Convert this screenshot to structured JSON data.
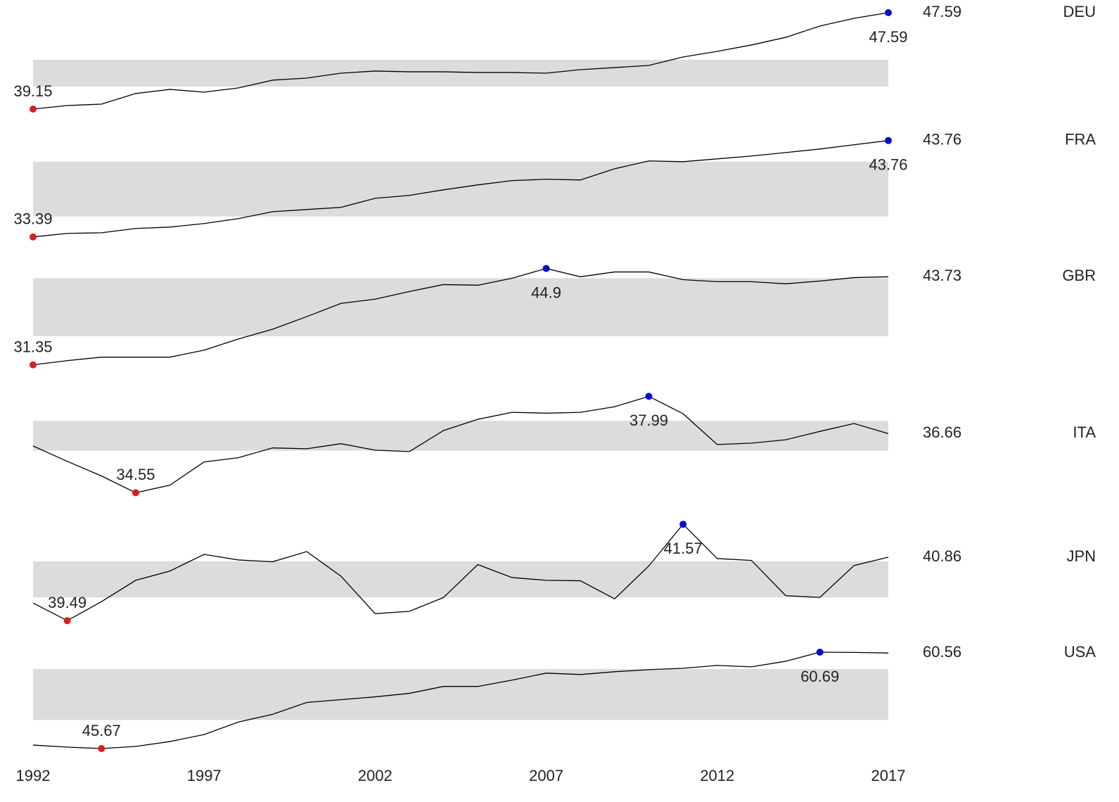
{
  "chart_data": {
    "type": "line",
    "x": [
      1992,
      1993,
      1994,
      1995,
      1996,
      1997,
      1998,
      1999,
      2000,
      2001,
      2002,
      2003,
      2004,
      2005,
      2006,
      2007,
      2008,
      2009,
      2010,
      2011,
      2012,
      2013,
      2014,
      2015,
      2016,
      2017
    ],
    "xlim": [
      1992,
      2017
    ],
    "xticks": [
      1992,
      1997,
      2002,
      2007,
      2012,
      2017
    ],
    "min_color": "#d62020",
    "max_color": "#0a0acc",
    "band_color": "#dcdcdc",
    "series": [
      {
        "name": "DEU",
        "color": "#000000",
        "ylim": [
          39.15,
          47.59
        ],
        "band": [
          41.12,
          43.46
        ],
        "values": [
          39.15,
          39.46,
          39.58,
          40.51,
          40.87,
          40.63,
          41.0,
          41.68,
          41.86,
          42.29,
          42.48,
          42.41,
          42.41,
          42.35,
          42.35,
          42.29,
          42.6,
          42.78,
          42.97,
          43.71,
          44.2,
          44.76,
          45.43,
          46.42,
          47.1,
          47.59
        ]
      },
      {
        "name": "FRA",
        "color": "#000000",
        "ylim": [
          33.39,
          43.76
        ],
        "band": [
          35.59,
          41.49
        ],
        "values": [
          33.39,
          33.77,
          33.84,
          34.3,
          34.45,
          34.83,
          35.36,
          36.11,
          36.34,
          36.57,
          37.55,
          37.86,
          38.46,
          38.99,
          39.45,
          39.6,
          39.52,
          40.73,
          41.57,
          41.49,
          41.79,
          42.1,
          42.47,
          42.85,
          43.31,
          43.76
        ]
      },
      {
        "name": "GBR",
        "color": "#000000",
        "ylim": [
          31.35,
          44.9
        ],
        "band": [
          35.38,
          43.53
        ],
        "values": [
          31.35,
          31.94,
          32.43,
          32.43,
          32.43,
          33.41,
          34.98,
          36.36,
          38.13,
          39.99,
          40.58,
          41.66,
          42.64,
          42.54,
          43.53,
          44.9,
          43.73,
          44.41,
          44.41,
          43.33,
          43.04,
          43.04,
          42.74,
          43.13,
          43.62,
          43.73
        ]
      },
      {
        "name": "ITA",
        "color": "#000000",
        "ylim": [
          34.55,
          37.99
        ],
        "band": [
          36.05,
          37.12
        ],
        "values": [
          36.22,
          35.67,
          35.15,
          34.55,
          34.82,
          35.65,
          35.8,
          36.15,
          36.12,
          36.3,
          36.07,
          36.02,
          36.77,
          37.17,
          37.42,
          37.39,
          37.42,
          37.62,
          37.99,
          37.37,
          36.27,
          36.32,
          36.44,
          36.74,
          37.02,
          36.66
        ]
      },
      {
        "name": "JPN",
        "color": "#000000",
        "ylim": [
          39.49,
          41.57
        ],
        "band": [
          39.99,
          40.77
        ],
        "values": [
          39.87,
          39.49,
          39.9,
          40.36,
          40.56,
          40.92,
          40.8,
          40.76,
          40.98,
          40.45,
          39.64,
          39.69,
          39.99,
          40.7,
          40.42,
          40.36,
          40.35,
          39.96,
          40.67,
          41.57,
          40.83,
          40.79,
          40.03,
          39.99,
          40.68,
          40.86
        ]
      },
      {
        "name": "USA",
        "color": "#000000",
        "ylim": [
          45.67,
          60.69
        ],
        "band": [
          50.13,
          58.07
        ],
        "values": [
          46.21,
          45.89,
          45.67,
          46.0,
          46.76,
          47.85,
          49.8,
          51.0,
          52.85,
          53.29,
          53.72,
          54.27,
          55.35,
          55.35,
          56.33,
          57.42,
          57.2,
          57.64,
          57.96,
          58.18,
          58.62,
          58.4,
          59.27,
          60.69,
          60.65,
          60.56
        ]
      }
    ]
  }
}
